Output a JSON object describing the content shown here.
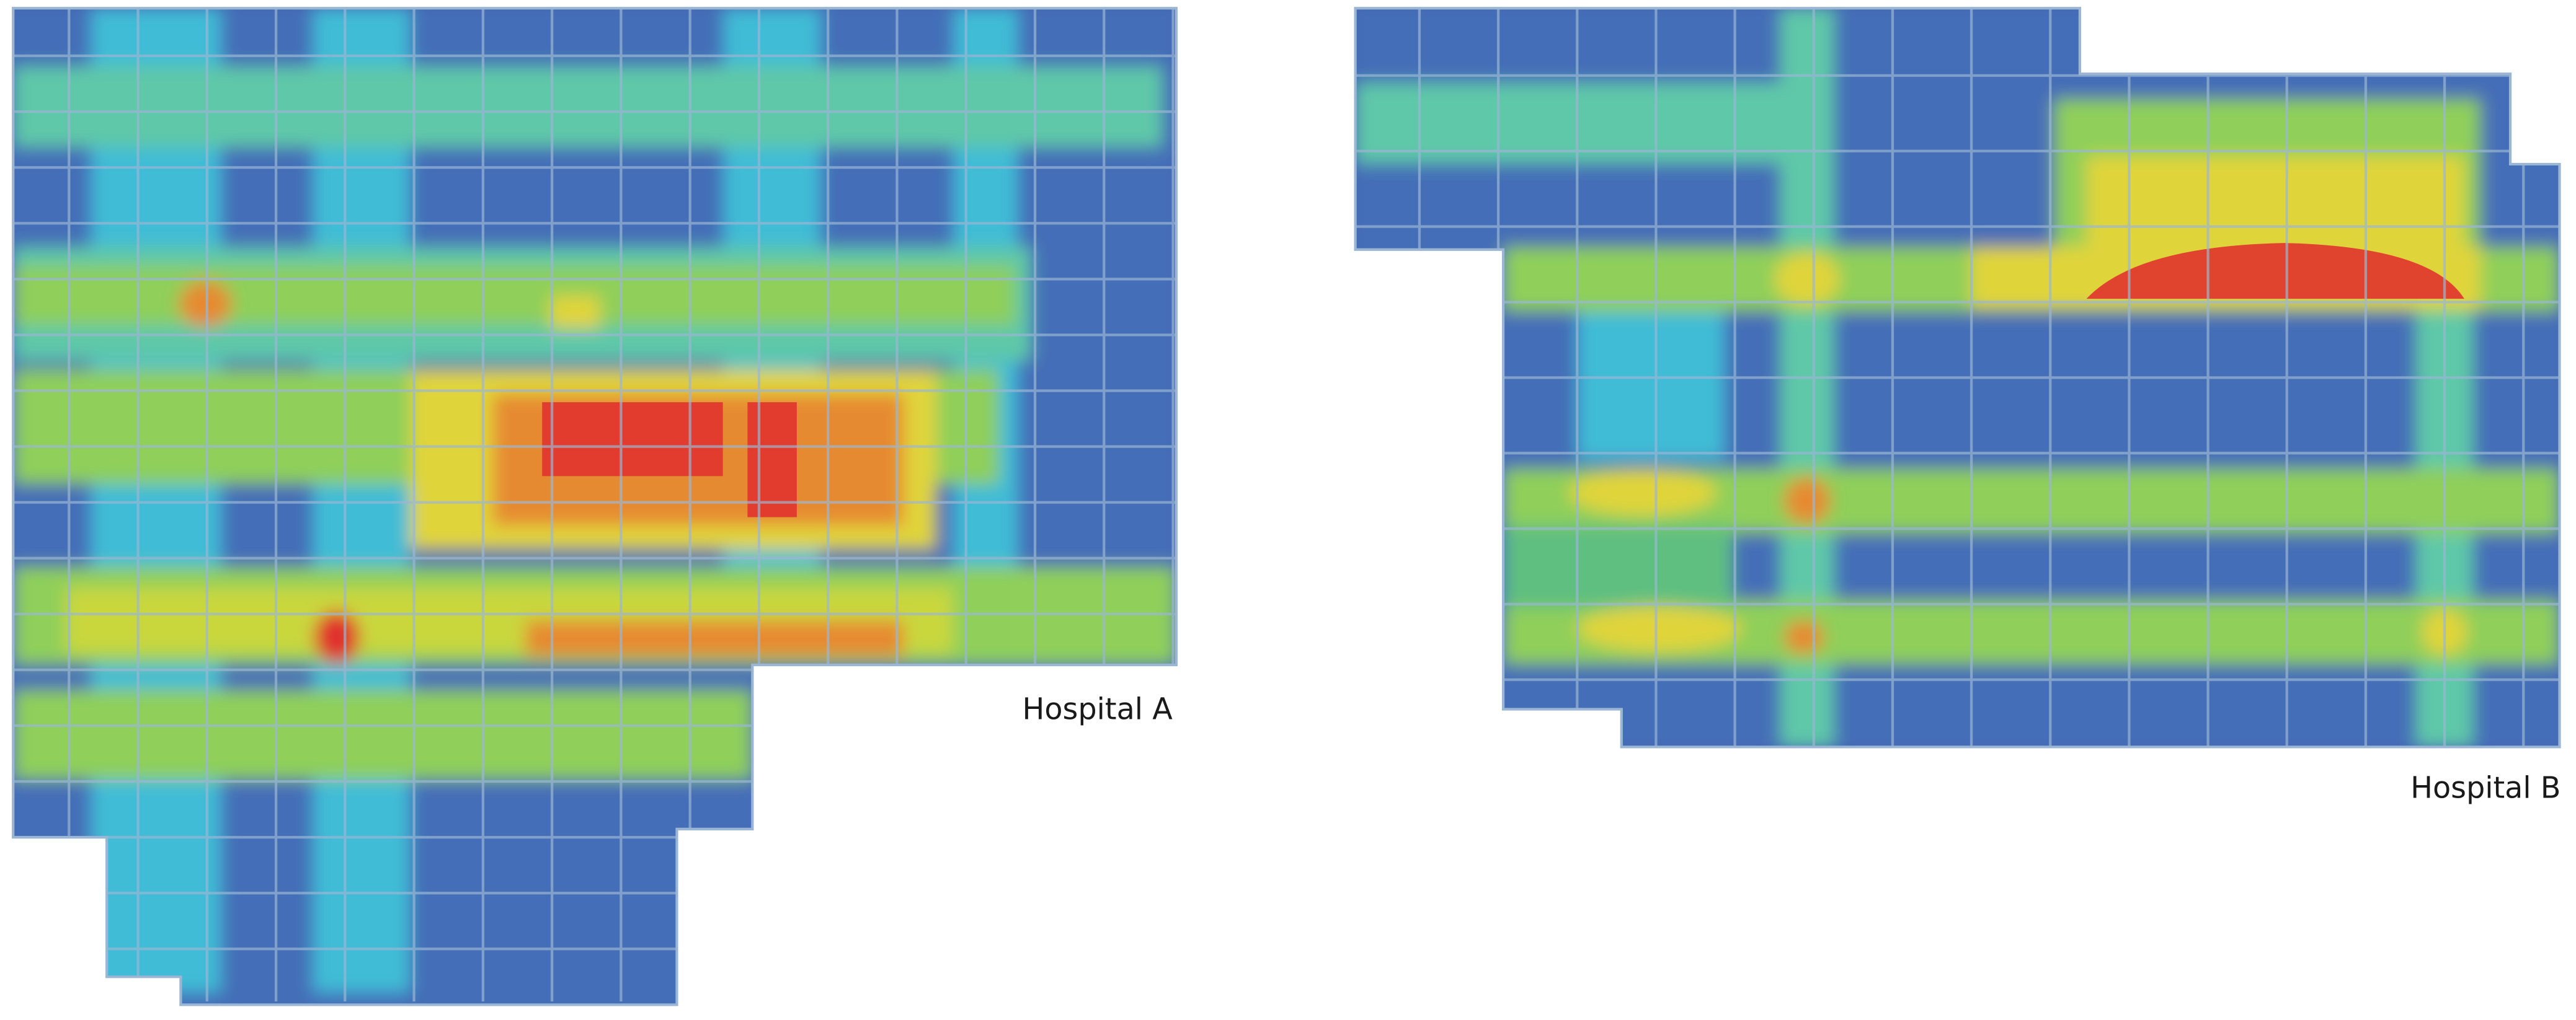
{
  "plans": [
    {
      "label": "Hospital A"
    },
    {
      "label": "Hospital B"
    }
  ]
}
